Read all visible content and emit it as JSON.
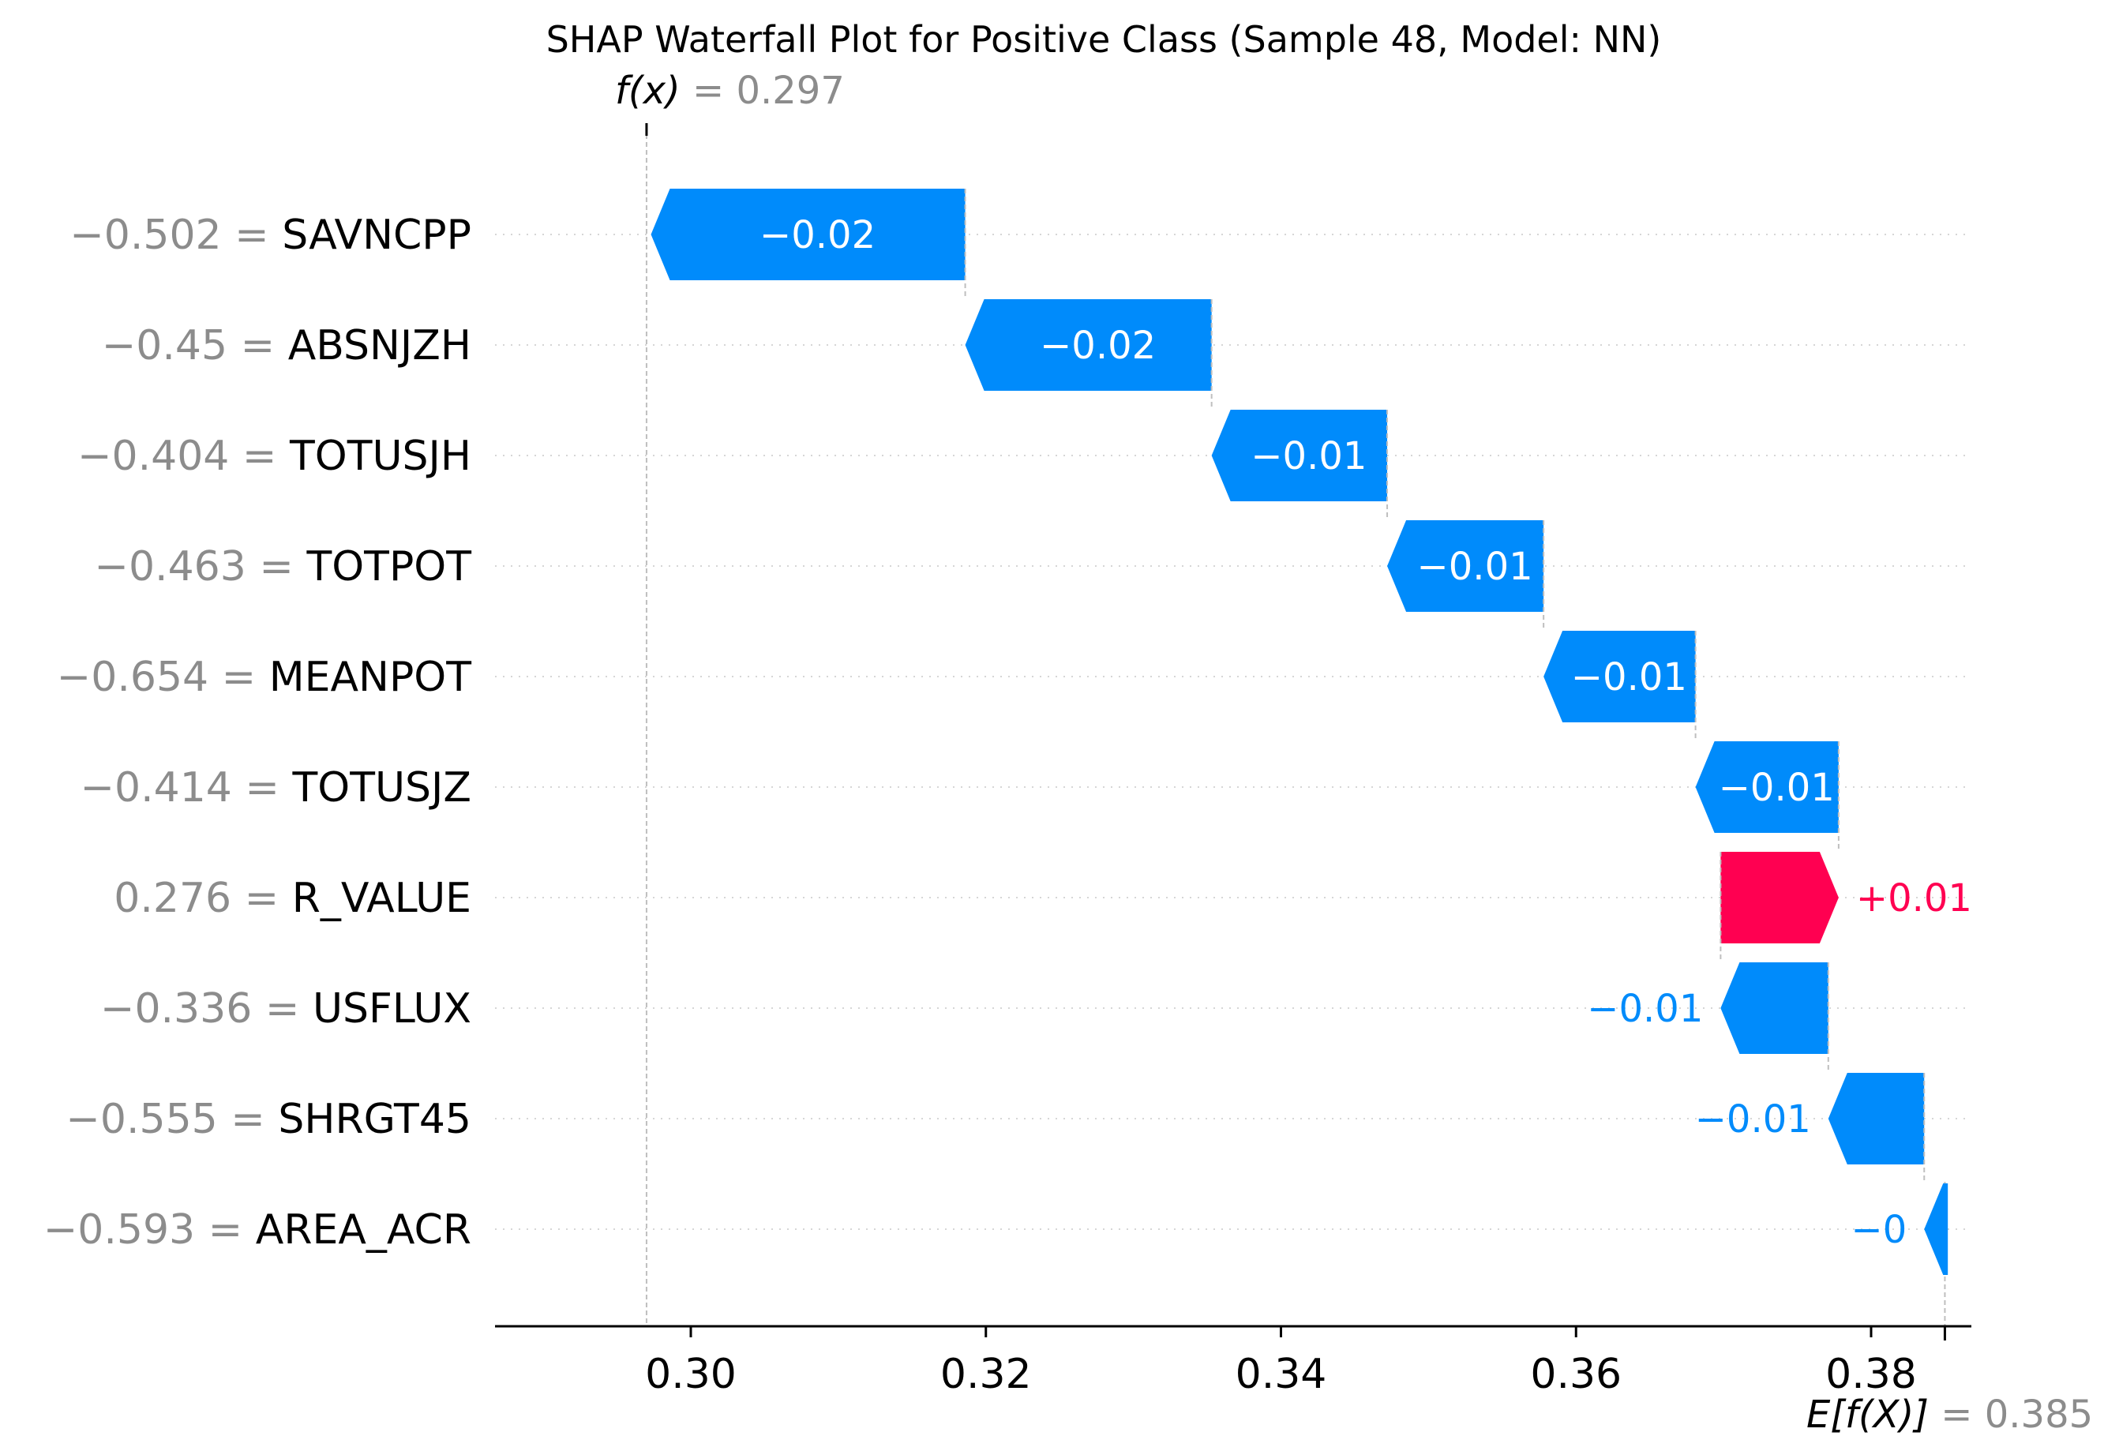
{
  "chart_data": {
    "type": "waterfall",
    "title": "SHAP Waterfall Plot for Positive Class (Sample 48, Model: NN)",
    "fx": {
      "label": "f(x)",
      "value": 0.297,
      "value_text": "0.297"
    },
    "efx": {
      "label": "E[f(X)]",
      "value": 0.385,
      "value_text": "0.385"
    },
    "xlim": [
      0.285,
      0.392
    ],
    "xticks": [
      0.3,
      0.32,
      0.34,
      0.36,
      0.38
    ],
    "xtick_labels": [
      "0.30",
      "0.32",
      "0.34",
      "0.36",
      "0.38"
    ],
    "features": [
      {
        "name": "SAVNCPP",
        "value_text": "−0.502",
        "start": 0.3186,
        "end": 0.2973,
        "label": "−0.02",
        "label_inside": true
      },
      {
        "name": "ABSNJZH",
        "value_text": "−0.45",
        "start": 0.3353,
        "end": 0.3186,
        "label": "−0.02",
        "label_inside": true
      },
      {
        "name": "TOTUSJH",
        "value_text": "−0.404",
        "start": 0.3472,
        "end": 0.3353,
        "label": "−0.01",
        "label_inside": true
      },
      {
        "name": "TOTPOT",
        "value_text": "−0.463",
        "start": 0.3578,
        "end": 0.3472,
        "label": "−0.01",
        "label_inside": true
      },
      {
        "name": "MEANPOT",
        "value_text": "−0.654",
        "start": 0.3681,
        "end": 0.3578,
        "label": "−0.01",
        "label_inside": true
      },
      {
        "name": "TOTUSJZ",
        "value_text": "−0.414",
        "start": 0.3778,
        "end": 0.3681,
        "label": "−0.01",
        "label_inside": true
      },
      {
        "name": "R_VALUE",
        "value_text": "0.276",
        "start": 0.3698,
        "end": 0.3778,
        "label": "+0.01",
        "label_inside": false
      },
      {
        "name": "USFLUX",
        "value_text": "−0.336",
        "start": 0.3771,
        "end": 0.3698,
        "label": "−0.01",
        "label_inside": false
      },
      {
        "name": "SHRGT45",
        "value_text": "−0.555",
        "start": 0.3836,
        "end": 0.3771,
        "label": "−0.01",
        "label_inside": false
      },
      {
        "name": "AREA_ACR",
        "value_text": "−0.593",
        "start": 0.3852,
        "end": 0.3836,
        "label": "−0",
        "label_inside": false
      }
    ],
    "colors": {
      "positive": "#ff0051",
      "negative": "#008bfb"
    },
    "grid": false
  }
}
